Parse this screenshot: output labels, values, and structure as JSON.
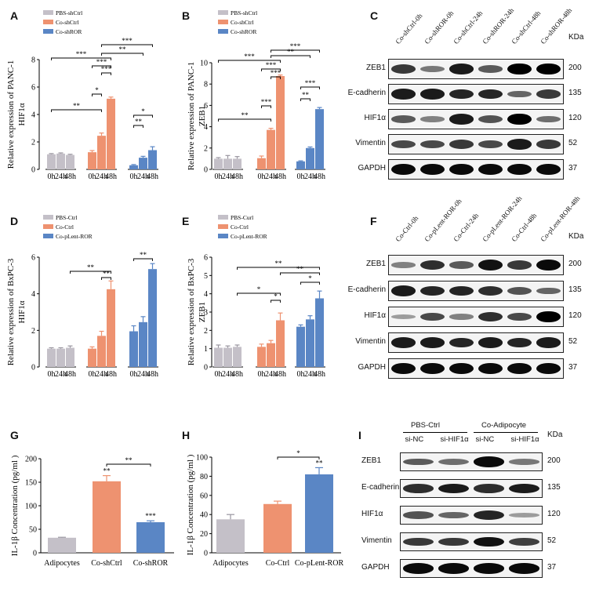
{
  "colors": {
    "grey": "#c4c0c8",
    "orange": "#ee9270",
    "blue": "#5a86c5"
  },
  "panels": {
    "A": {
      "letter": "A",
      "ylabel1": "Relative expression of PANC-1",
      "ylabel2": "HIF1α",
      "legend": [
        "PBS-shCtrl",
        "Co-shCtrl",
        "Co-shROR"
      ]
    },
    "B": {
      "letter": "B",
      "ylabel1": "Relative expression of PANC-1",
      "ylabel2": "ZEB1",
      "legend": [
        "PBS-shCtrl",
        "Co-shCtrl",
        "Co-shROR"
      ]
    },
    "D": {
      "letter": "D",
      "ylabel1": "Relative expression of BxPC-3",
      "ylabel2": "HIF1α",
      "legend": [
        "PBS-Ctrl",
        "Co-Ctrl",
        "Co-pLent-ROR"
      ]
    },
    "E": {
      "letter": "E",
      "ylabel1": "Relative expression of BxPC-3",
      "ylabel2": "ZEB1",
      "legend": [
        "PBS-Curl",
        "Co-Ctrl",
        "Co-pLent-ROR"
      ]
    },
    "G": {
      "letter": "G",
      "ylabel": "IL-1β Concentration (pg/ml )"
    },
    "H": {
      "letter": "H",
      "ylabel": "IL-1β Concentration (pg/ml )"
    },
    "C": {
      "letter": "C",
      "kda": "KDa",
      "columns": [
        "Co-shCtrl-0h",
        "Co-shROR-0h",
        "Co-shCtrl-24h",
        "Co-shROR-24h",
        "Co-shCtrl-48h",
        "Co-shROR-48h"
      ],
      "rows": [
        {
          "name": "ZEB1",
          "kda": "200"
        },
        {
          "name": "E-cadherin",
          "kda": "135"
        },
        {
          "name": "HIF1α",
          "kda": "120"
        },
        {
          "name": "Vimentin",
          "kda": "52"
        },
        {
          "name": "GAPDH",
          "kda": "37"
        }
      ]
    },
    "F": {
      "letter": "F",
      "kda": "KDa",
      "columns": [
        "Co-Ctrl-0h",
        "Co-pLent-ROR-0h",
        "Co-Ctrl-24h",
        "Co-pLent-ROR-24h",
        "Co-Ctrl-48h",
        "Co-pLent-ROR-48h"
      ],
      "rows": [
        {
          "name": "ZEB1",
          "kda": "200"
        },
        {
          "name": "E-cadherin",
          "kda": "135"
        },
        {
          "name": "HIF1α",
          "kda": "120"
        },
        {
          "name": "Vimentin",
          "kda": "52"
        },
        {
          "name": "GAPDH",
          "kda": "37"
        }
      ]
    },
    "I": {
      "letter": "I",
      "kda": "KDa",
      "groups": [
        "PBS-Ctrl",
        "Co-Adipocyte"
      ],
      "columns": [
        "si-NC",
        "si-HIF1α",
        "si-NC",
        "si-HIF1α"
      ],
      "rows": [
        {
          "name": "ZEB1",
          "kda": "200"
        },
        {
          "name": "E-cadherin",
          "kda": "135"
        },
        {
          "name": "HIF1α",
          "kda": "120"
        },
        {
          "name": "Vimentin",
          "kda": "52"
        },
        {
          "name": "GAPDH",
          "kda": "37"
        }
      ]
    }
  },
  "chart_data": [
    {
      "id": "A",
      "type": "bar",
      "ylim": [
        0,
        8
      ],
      "yticks": [
        0,
        2,
        4,
        6,
        8
      ],
      "groups": [
        {
          "x": [
            "0h",
            "24h",
            "48h"
          ],
          "values": [
            1.1,
            1.15,
            1.05
          ],
          "err": [
            0.05,
            0.05,
            0.05
          ]
        },
        {
          "x": [
            "0h",
            "24h",
            "48h"
          ],
          "values": [
            1.25,
            2.45,
            5.15
          ],
          "err": [
            0.12,
            0.2,
            0.12
          ]
        },
        {
          "x": [
            "0h",
            "24h",
            "48h"
          ],
          "values": [
            0.3,
            0.85,
            1.4
          ],
          "err": [
            0.05,
            0.1,
            0.25
          ]
        }
      ],
      "sig": [
        "**",
        "*",
        "***",
        "***",
        "***",
        "**",
        "***",
        "**",
        "*"
      ]
    },
    {
      "id": "B",
      "type": "bar",
      "ylim": [
        0,
        10
      ],
      "yticks": [
        0,
        2,
        4,
        6,
        8,
        10
      ],
      "groups": [
        {
          "x": [
            "0h",
            "24h",
            "48h"
          ],
          "values": [
            1.0,
            1.0,
            1.0
          ],
          "err": [
            0.1,
            0.3,
            0.2
          ]
        },
        {
          "x": [
            "0h",
            "24h",
            "48h"
          ],
          "values": [
            1.05,
            3.7,
            8.75
          ],
          "err": [
            0.2,
            0.15,
            0.1
          ]
        },
        {
          "x": [
            "0h",
            "24h",
            "48h"
          ],
          "values": [
            0.75,
            2.0,
            5.65
          ],
          "err": [
            0.05,
            0.1,
            0.15
          ]
        }
      ],
      "sig": [
        "**",
        "***",
        "***",
        "***",
        "***",
        "**",
        "***",
        "**",
        "***"
      ]
    },
    {
      "id": "D",
      "type": "bar",
      "ylim": [
        0,
        6
      ],
      "yticks": [
        0,
        2,
        4,
        6
      ],
      "groups": [
        {
          "x": [
            "0h",
            "24h",
            "48h"
          ],
          "values": [
            1.0,
            1.0,
            1.05
          ],
          "err": [
            0.05,
            0.05,
            0.1
          ]
        },
        {
          "x": [
            "0h",
            "24h",
            "48h"
          ],
          "values": [
            1.0,
            1.7,
            4.25
          ],
          "err": [
            0.1,
            0.25,
            0.45
          ]
        },
        {
          "x": [
            "0h",
            "24h",
            "48h"
          ],
          "values": [
            1.95,
            2.45,
            5.35
          ],
          "err": [
            0.3,
            0.3,
            0.3
          ]
        }
      ],
      "sig": [
        "**",
        "**",
        "**"
      ]
    },
    {
      "id": "E",
      "type": "bar",
      "ylim": [
        0,
        6
      ],
      "yticks": [
        0,
        1,
        2,
        3,
        4,
        5,
        6
      ],
      "groups": [
        {
          "x": [
            "0h",
            "24h",
            "48h"
          ],
          "values": [
            1.05,
            1.05,
            1.1
          ],
          "err": [
            0.15,
            0.1,
            0.1
          ]
        },
        {
          "x": [
            "0h",
            "24h",
            "48h"
          ],
          "values": [
            1.1,
            1.3,
            2.55
          ],
          "err": [
            0.15,
            0.15,
            0.4
          ]
        },
        {
          "x": [
            "0h",
            "24h",
            "48h"
          ],
          "values": [
            2.2,
            2.6,
            3.75
          ],
          "err": [
            0.1,
            0.2,
            0.4
          ]
        }
      ],
      "sig": [
        "*",
        "*",
        "**",
        "**",
        "*"
      ]
    },
    {
      "id": "G",
      "type": "bar",
      "ylim": [
        0,
        200
      ],
      "yticks": [
        0,
        50,
        100,
        150,
        200
      ],
      "categories": [
        "Adipocytes",
        "Co-shCtrl",
        "Co-shROR"
      ],
      "values": [
        32,
        152,
        65
      ],
      "err": [
        1,
        12,
        3
      ],
      "above": [
        "",
        "**",
        "***"
      ],
      "sig": [
        "**"
      ]
    },
    {
      "id": "H",
      "type": "bar",
      "ylim": [
        0,
        100
      ],
      "yticks": [
        0,
        20,
        40,
        60,
        80,
        100
      ],
      "categories": [
        "Adipocytes",
        "Co-Ctrl",
        "Co-pLent-ROR"
      ],
      "values": [
        35,
        51,
        82
      ],
      "err": [
        5,
        3,
        7
      ],
      "above": [
        "",
        "",
        "**"
      ],
      "sig": [
        "*"
      ]
    }
  ]
}
